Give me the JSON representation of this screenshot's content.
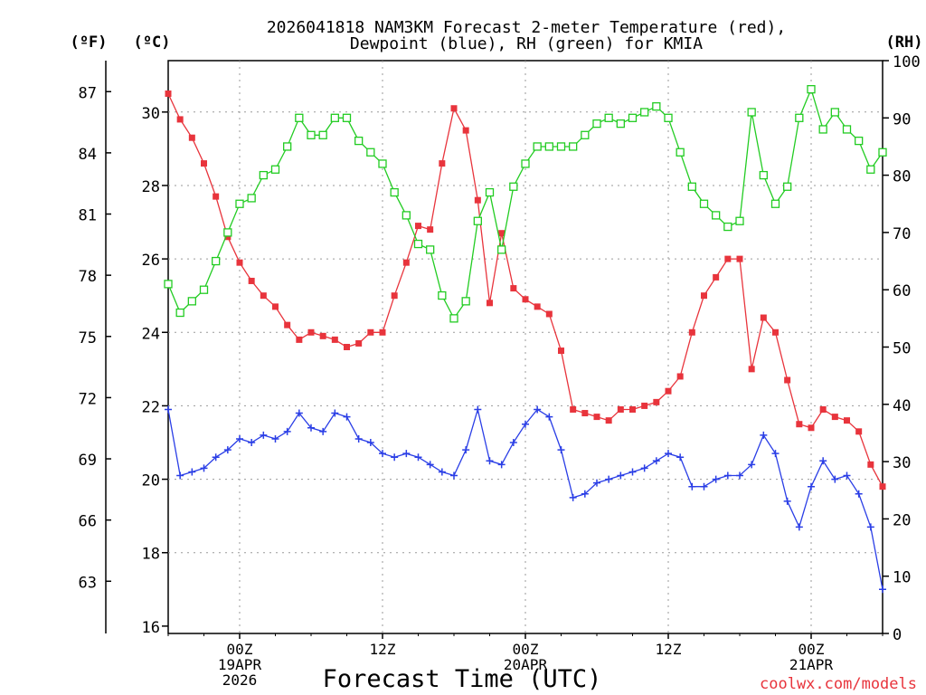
{
  "chart_data": {
    "type": "line",
    "title": [
      "2026041818 NAM3KM Forecast 2-meter Temperature (red),",
      "Dewpoint (blue), RH (green) for KMIA"
    ],
    "xlabel": "Forecast Time (UTC)",
    "units": {
      "fahrenheit": "(ºF)",
      "celsius": "(ºC)",
      "rh": "(RH)"
    },
    "watermark": "coolwx.com/models",
    "ylim_c": [
      15.8,
      31.4
    ],
    "ylim_rh": [
      0,
      100
    ],
    "xlim_hours": [
      0,
      60
    ],
    "x_ticks": [
      {
        "hour": 6,
        "labels": [
          "00Z",
          "19APR",
          "2026"
        ]
      },
      {
        "hour": 18,
        "labels": [
          "12Z",
          "",
          ""
        ]
      },
      {
        "hour": 30,
        "labels": [
          "00Z",
          "20APR",
          ""
        ]
      },
      {
        "hour": 42,
        "labels": [
          "12Z",
          "",
          ""
        ]
      },
      {
        "hour": 54,
        "labels": [
          "00Z",
          "21APR",
          ""
        ]
      }
    ],
    "y_ticks_c": [
      16,
      18,
      20,
      22,
      24,
      26,
      28,
      30
    ],
    "y_ticks_f": [
      63,
      66,
      69,
      72,
      75,
      78,
      81,
      84,
      87
    ],
    "y_ticks_rh": [
      0,
      10,
      20,
      30,
      40,
      50,
      60,
      70,
      80,
      90,
      100
    ],
    "colors": {
      "temperature": "#e8343c",
      "dewpoint": "#2a3ee6",
      "rh": "#22cc22",
      "grid": "#9a9a9a"
    },
    "hours": [
      0,
      1,
      2,
      3,
      4,
      5,
      6,
      7,
      8,
      9,
      10,
      11,
      12,
      13,
      14,
      15,
      16,
      17,
      18,
      19,
      20,
      21,
      22,
      23,
      24,
      25,
      26,
      27,
      28,
      29,
      30,
      31,
      32,
      33,
      34,
      35,
      36,
      37,
      38,
      39,
      40,
      41,
      42,
      43,
      44,
      45,
      46,
      47,
      48,
      49,
      50,
      51,
      52,
      53,
      54,
      55,
      56,
      57,
      58,
      59,
      60
    ],
    "series": [
      {
        "name": "Temperature",
        "unit": "C",
        "values": [
          30.5,
          29.8,
          29.3,
          28.6,
          27.7,
          26.6,
          25.9,
          25.4,
          25.0,
          24.7,
          24.2,
          23.8,
          24.0,
          23.9,
          23.8,
          23.6,
          23.7,
          24.0,
          24.0,
          25.0,
          25.9,
          26.9,
          26.8,
          28.6,
          30.1,
          29.5,
          27.6,
          24.8,
          26.7,
          25.2,
          24.9,
          24.7,
          24.5,
          23.5,
          21.9,
          21.8,
          21.7,
          21.6,
          21.9,
          21.9,
          22.0,
          22.1,
          22.4,
          22.8,
          24.0,
          25.0,
          25.5,
          26.0,
          26.0,
          23.0,
          24.4,
          24.0,
          22.7,
          21.5,
          21.4,
          21.9,
          21.7,
          21.6,
          21.3,
          20.4,
          19.8
        ]
      },
      {
        "name": "Dewpoint",
        "unit": "C",
        "values": [
          21.9,
          20.1,
          20.2,
          20.3,
          20.6,
          20.8,
          21.1,
          21.0,
          21.2,
          21.1,
          21.3,
          21.8,
          21.4,
          21.3,
          21.8,
          21.7,
          21.1,
          21.0,
          20.7,
          20.6,
          20.7,
          20.6,
          20.4,
          20.2,
          20.1,
          20.8,
          21.9,
          20.5,
          20.4,
          21.0,
          21.5,
          21.9,
          21.7,
          20.8,
          19.5,
          19.6,
          19.9,
          20.0,
          20.1,
          20.2,
          20.3,
          20.5,
          20.7,
          20.6,
          19.8,
          19.8,
          20.0,
          20.1,
          20.1,
          20.4,
          21.2,
          20.7,
          19.4,
          18.7,
          19.8,
          20.5,
          20.0,
          20.1,
          19.6,
          18.7,
          17.0
        ]
      },
      {
        "name": "RH",
        "unit": "%",
        "values": [
          61,
          56,
          58,
          60,
          65,
          70,
          75,
          76,
          80,
          81,
          85,
          90,
          87,
          87,
          90,
          90,
          86,
          84,
          82,
          77,
          73,
          68,
          67,
          59,
          55,
          58,
          72,
          77,
          67,
          78,
          82,
          85,
          85,
          85,
          85,
          87,
          89,
          90,
          89,
          90,
          91,
          92,
          90,
          84,
          78,
          75,
          73,
          71,
          72,
          91,
          80,
          75,
          78,
          90,
          95,
          88,
          91,
          88,
          86,
          81,
          84
        ]
      }
    ]
  }
}
